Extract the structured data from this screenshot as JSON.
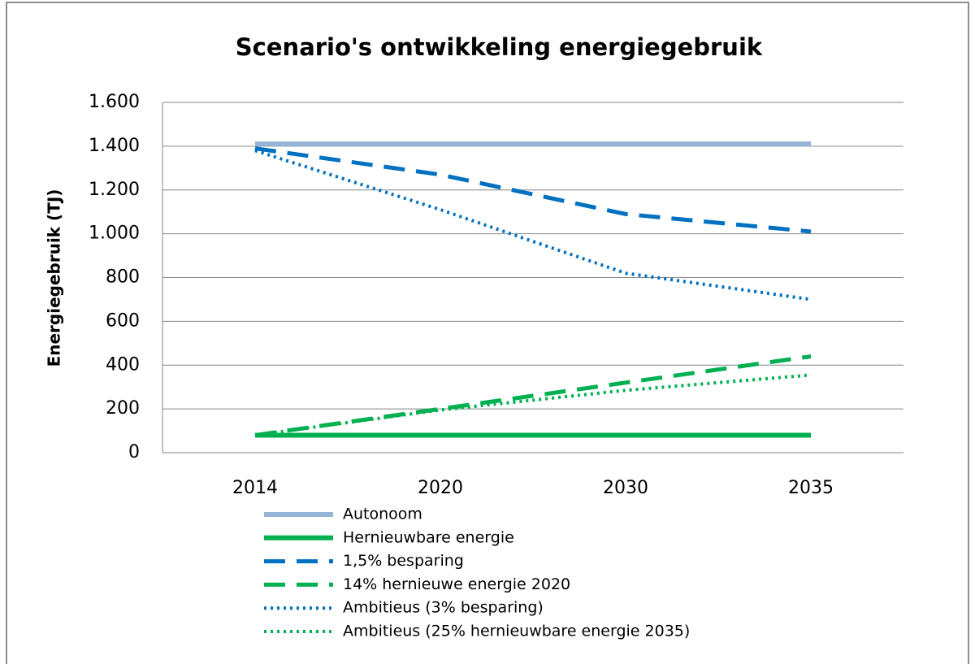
{
  "chart_data": {
    "type": "line",
    "title": "Scenario's ontwikkeling energiegebruik",
    "y_label": "Energiegebruik (TJ)",
    "categories": [
      "2014",
      "2020",
      "2030",
      "2035"
    ],
    "series": [
      {
        "name": "Autonoom",
        "color": "#95b3d7",
        "dash": "solid",
        "values": [
          1410,
          1410,
          1410,
          1410
        ]
      },
      {
        "name": "Hernieuwbare energie",
        "color": "#00b050",
        "dash": "solid",
        "values": [
          80,
          80,
          80,
          80
        ]
      },
      {
        "name": "1,5% besparing",
        "color": "#0070c0",
        "dash": "dash",
        "values": [
          1390,
          1270,
          1090,
          1010
        ]
      },
      {
        "name": "14% hernieuwe energie 2020",
        "color": "#00b050",
        "dash": "dash",
        "values": [
          80,
          200,
          320,
          440
        ]
      },
      {
        "name": "Ambitieus (3% besparing)",
        "color": "#0070c0",
        "dash": "dot",
        "values": [
          1380,
          1110,
          820,
          700
        ]
      },
      {
        "name": "Ambitieus (25% hernieuwbare energie 2035)",
        "color": "#00b050",
        "dash": "dot",
        "values": [
          80,
          195,
          285,
          355
        ]
      }
    ],
    "ylim": [
      0,
      1600
    ],
    "yticks": [
      0,
      200,
      400,
      600,
      800,
      {
        "value": 1000,
        "label": "1.000"
      },
      {
        "value": 1200,
        "label": "1.200"
      },
      {
        "value": 1400,
        "label": "1.400"
      },
      {
        "value": 1600,
        "label": "1.600"
      }
    ],
    "grid": true,
    "legend": "bottom"
  }
}
